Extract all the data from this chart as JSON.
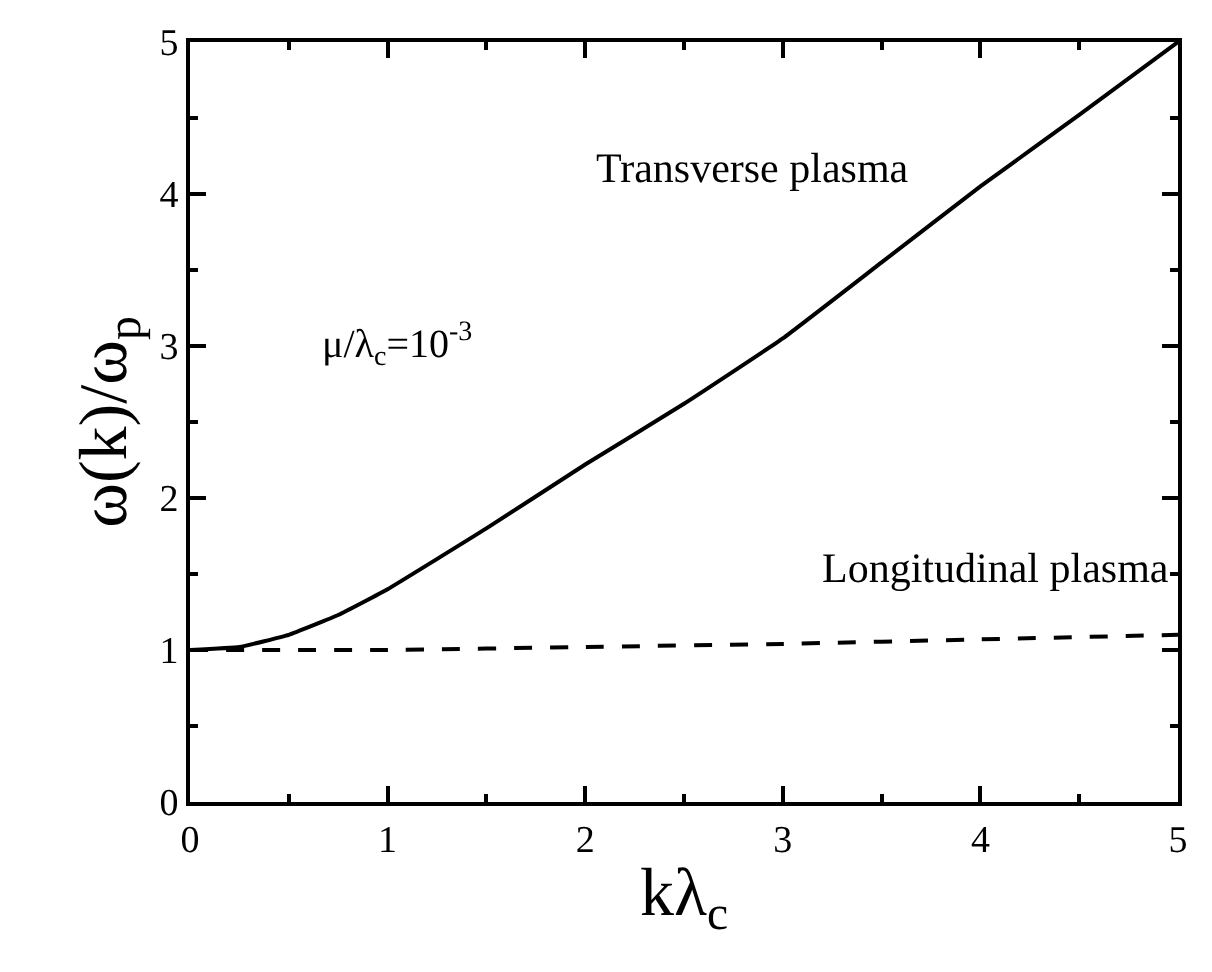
{
  "chart_data": {
    "type": "line",
    "xlabel": "kλ$_{c}$",
    "ylabel": "ω(k)/ω$_{p}$",
    "annotations": [
      "Transverse plasma",
      "Longitudinal plasma",
      "μ/λ$_{c}$=10$^{-3}$"
    ],
    "xlim": [
      0,
      5
    ],
    "ylim": [
      0,
      5
    ],
    "xticks": [
      0,
      1,
      2,
      3,
      4,
      5
    ],
    "yticks": [
      0,
      1,
      2,
      3,
      4,
      5
    ],
    "legend": false,
    "marker": "none",
    "series": [
      {
        "color": "#000000",
        "line_style": "solid",
        "x": [
          0,
          0.25,
          0.5,
          0.75,
          1,
          1.5,
          2,
          2.5,
          3,
          3.5,
          4,
          4.5,
          5
        ],
        "values": [
          1,
          1.02,
          1.1,
          1.23,
          1.4,
          1.8,
          2.22,
          2.62,
          3.05,
          3.55,
          4.05,
          4.52,
          5.0
        ]
      },
      {
        "color": "#000000",
        "line_style": "dashed",
        "x": [
          0,
          1,
          2,
          3,
          4,
          5
        ],
        "values": [
          1,
          1.0,
          1.02,
          1.04,
          1.07,
          1.1
        ]
      }
    ]
  }
}
